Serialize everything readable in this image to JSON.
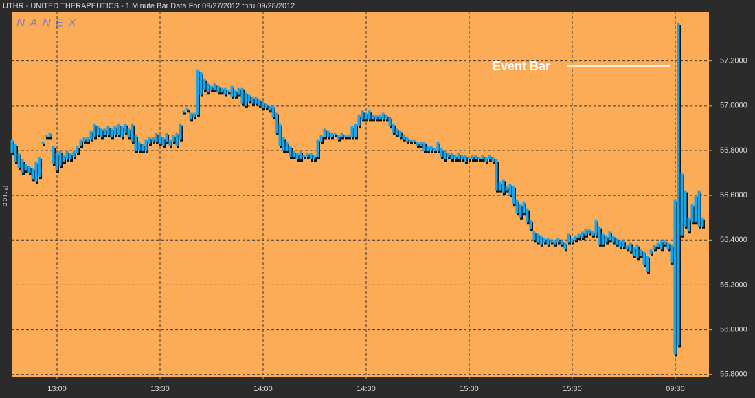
{
  "chart_data": {
    "type": "range-bar",
    "title": "UTHR - UNITED THERAPEUTICS - 1 Minute Bar Data For 09/27/2012  thru  09/28/2012",
    "watermark": "NANEX",
    "y_label": "Price",
    "annotation": "Event Bar",
    "color": "#1ca3e8",
    "shadow_color": "#111111",
    "plot_color": "#fcab57",
    "grid": true,
    "xlim": [
      -0.2,
      202.8
    ],
    "xticks": [
      {
        "value": 13,
        "label": "13:00"
      },
      {
        "value": 43,
        "label": "13:30"
      },
      {
        "value": 73,
        "label": "14:00"
      },
      {
        "value": 103,
        "label": "14:30"
      },
      {
        "value": 133,
        "label": "15:00"
      },
      {
        "value": 163,
        "label": "15:30"
      },
      {
        "value": 193,
        "label": "09:30"
      }
    ],
    "ylim": [
      55.79,
      57.42
    ],
    "yticks": [
      {
        "value": 55.8,
        "label": "55.8000"
      },
      {
        "value": 56,
        "label": "56.0000"
      },
      {
        "value": 56.2,
        "label": "56.2000"
      },
      {
        "value": 56.4,
        "label": "56.4000"
      },
      {
        "value": 56.6,
        "label": "56.6000"
      },
      {
        "value": 56.8,
        "label": "56.8000"
      },
      {
        "value": 57,
        "label": "57.0000"
      },
      {
        "value": 57.2,
        "label": "57.2000"
      }
    ],
    "high": [
      56.85,
      56.83,
      56.79,
      56.76,
      56.74,
      56.73,
      56.72,
      56.75,
      56.77,
      56.84,
      56.87,
      56.88,
      56.82,
      56.79,
      56.8,
      56.78,
      56.8,
      56.79,
      56.8,
      56.82,
      56.85,
      56.86,
      56.86,
      56.89,
      56.92,
      56.91,
      56.9,
      56.9,
      56.91,
      56.9,
      56.91,
      56.92,
      56.91,
      56.92,
      56.9,
      56.92,
      56.87,
      56.84,
      56.83,
      56.85,
      56.86,
      56.86,
      56.88,
      56.87,
      56.86,
      56.88,
      56.85,
      56.87,
      56.88,
      56.92,
      56.98,
      56.99,
      56.97,
      56.97,
      57.16,
      57.15,
      57.12,
      57.1,
      57.09,
      57.1,
      57.09,
      57.08,
      57.08,
      57.07,
      57.09,
      57.07,
      57.08,
      57.08,
      57.06,
      57.05,
      57.04,
      57.04,
      57.03,
      57.02,
      57.01,
      57.0,
      57.0,
      56.97,
      56.92,
      56.86,
      56.84,
      56.82,
      56.8,
      56.79,
      56.8,
      56.78,
      56.79,
      56.79,
      56.78,
      56.85,
      56.87,
      56.9,
      56.89,
      56.88,
      56.88,
      56.87,
      56.88,
      56.87,
      56.87,
      56.91,
      56.92,
      56.96,
      56.98,
      56.97,
      56.98,
      56.96,
      56.96,
      56.96,
      56.97,
      56.96,
      56.95,
      56.92,
      56.9,
      56.89,
      56.87,
      56.86,
      56.85,
      56.85,
      56.84,
      56.84,
      56.84,
      56.82,
      56.82,
      56.81,
      56.84,
      56.81,
      56.8,
      56.79,
      56.79,
      56.78,
      56.79,
      56.78,
      56.78,
      56.77,
      56.78,
      56.78,
      56.77,
      56.78,
      56.77,
      56.78,
      56.77,
      56.76,
      56.66,
      56.67,
      56.64,
      56.65,
      56.64,
      56.58,
      56.56,
      56.57,
      56.54,
      56.49,
      56.44,
      56.43,
      56.42,
      56.41,
      56.41,
      56.4,
      56.4,
      56.41,
      56.4,
      56.39,
      56.43,
      56.41,
      56.42,
      56.43,
      56.44,
      56.45,
      56.45,
      56.44,
      56.49,
      56.46,
      56.43,
      56.42,
      56.44,
      56.42,
      56.41,
      56.4,
      56.4,
      56.38,
      56.39,
      56.37,
      56.38,
      56.36,
      56.35,
      56.33,
      56.36,
      56.38,
      56.39,
      56.4,
      56.4,
      56.39,
      56.38,
      56.58,
      57.37,
      56.7,
      56.62,
      56.5,
      56.56,
      56.6,
      56.62,
      56.5
    ],
    "low": [
      56.79,
      56.75,
      56.72,
      56.7,
      56.71,
      56.7,
      56.67,
      56.66,
      56.68,
      56.83,
      56.86,
      56.86,
      56.74,
      56.71,
      56.73,
      56.75,
      56.76,
      56.76,
      56.77,
      56.79,
      56.82,
      56.84,
      56.84,
      56.85,
      56.86,
      56.87,
      56.86,
      56.87,
      56.87,
      56.86,
      56.87,
      56.87,
      56.86,
      56.88,
      56.86,
      56.84,
      56.8,
      56.8,
      56.8,
      56.8,
      56.83,
      56.84,
      56.84,
      56.83,
      56.82,
      56.84,
      56.82,
      56.84,
      56.82,
      56.85,
      56.97,
      56.98,
      56.94,
      56.95,
      56.96,
      57.05,
      57.07,
      57.06,
      57.07,
      57.07,
      57.06,
      57.06,
      57.05,
      57.06,
      57.04,
      57.04,
      57.05,
      57.01,
      57.0,
      57.02,
      57.01,
      57.01,
      57.0,
      56.99,
      56.99,
      56.98,
      56.95,
      56.88,
      56.82,
      56.8,
      56.8,
      56.77,
      56.77,
      56.76,
      56.76,
      56.77,
      56.77,
      56.76,
      56.76,
      56.77,
      56.84,
      56.86,
      56.86,
      56.86,
      56.87,
      56.85,
      56.86,
      56.86,
      56.86,
      56.86,
      56.86,
      56.91,
      56.94,
      56.94,
      56.94,
      56.94,
      56.94,
      56.94,
      56.94,
      56.94,
      56.91,
      56.88,
      56.87,
      56.86,
      56.85,
      56.84,
      56.84,
      56.84,
      56.82,
      56.82,
      56.8,
      56.8,
      56.8,
      56.8,
      56.8,
      56.77,
      56.76,
      56.77,
      56.76,
      56.76,
      56.76,
      56.76,
      56.75,
      56.76,
      56.76,
      56.76,
      56.76,
      56.76,
      56.75,
      56.76,
      56.75,
      56.62,
      56.62,
      56.61,
      56.62,
      56.6,
      56.56,
      56.52,
      56.5,
      56.52,
      56.48,
      56.45,
      56.4,
      56.39,
      56.38,
      56.39,
      56.38,
      56.39,
      56.38,
      56.39,
      56.38,
      56.36,
      56.39,
      56.39,
      56.4,
      56.41,
      56.41,
      56.42,
      56.43,
      56.42,
      56.42,
      56.38,
      56.38,
      56.39,
      56.4,
      56.39,
      56.38,
      56.37,
      56.37,
      56.36,
      56.35,
      56.33,
      56.32,
      56.33,
      56.29,
      56.26,
      56.34,
      56.36,
      56.37,
      56.36,
      56.38,
      56.36,
      56.3,
      55.89,
      55.93,
      56.42,
      56.46,
      56.44,
      56.48,
      56.48,
      56.46,
      56.46
    ]
  }
}
